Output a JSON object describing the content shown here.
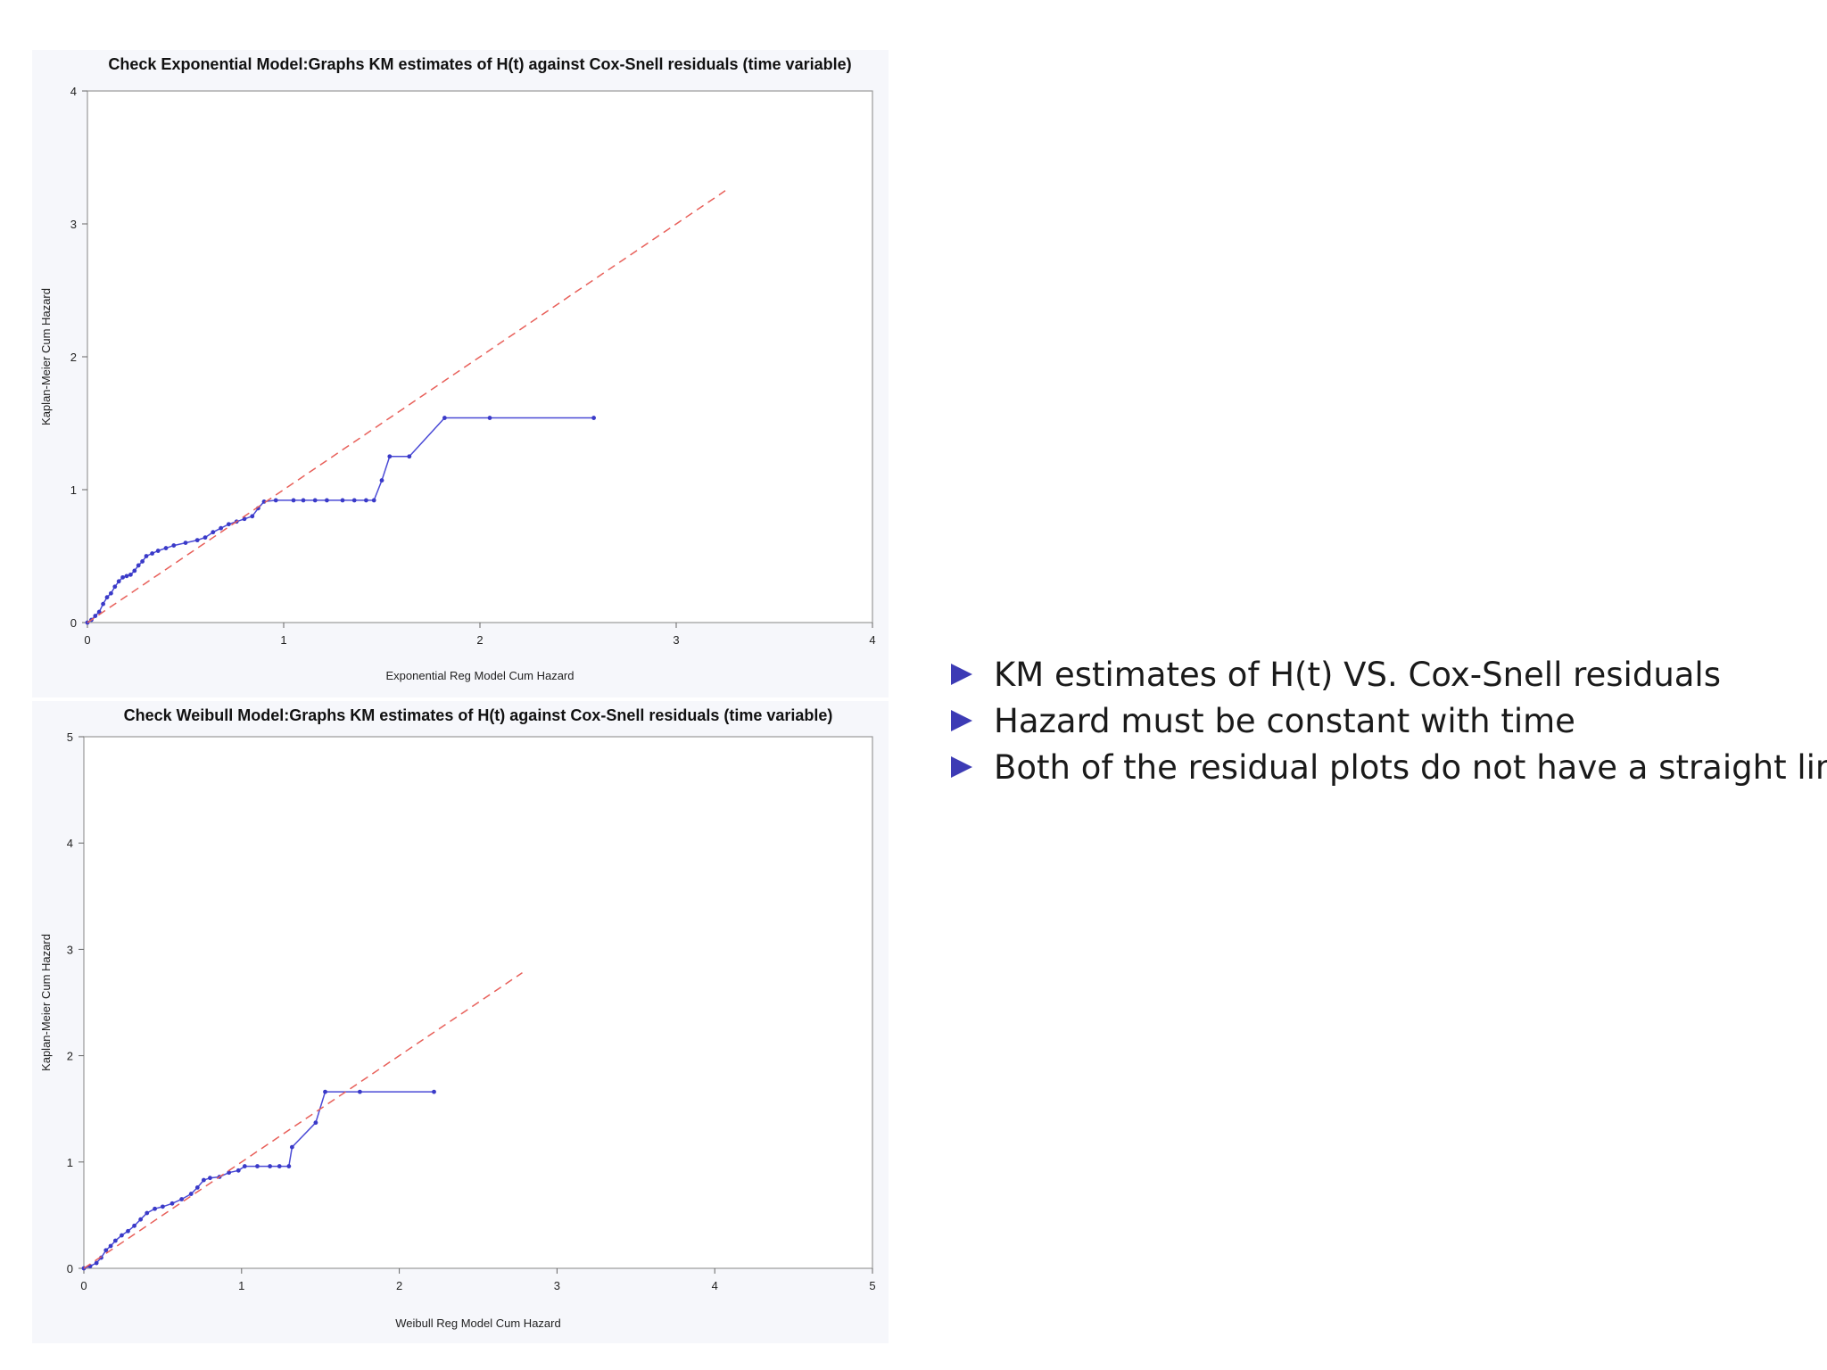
{
  "chart_data": [
    {
      "type": "line",
      "title": "Check Exponential Model:Graphs KM estimates of H(t) against Cox-Snell residuals (time variable)",
      "xlabel": "Exponential Reg Model Cum Hazard",
      "ylabel": "Kaplan-Meier Cum Hazard",
      "xlim": [
        0,
        4
      ],
      "ylim": [
        0,
        4
      ],
      "xticks": [
        "0",
        "1",
        "2",
        "3",
        "4"
      ],
      "yticks": [
        "0",
        "1",
        "2",
        "3",
        "4"
      ],
      "series": [
        {
          "color": "#4a4ad6",
          "style": "solid-with-markers",
          "x": [
            0,
            0.02,
            0.04,
            0.06,
            0.08,
            0.1,
            0.12,
            0.14,
            0.16,
            0.18,
            0.2,
            0.22,
            0.24,
            0.26,
            0.28,
            0.3,
            0.33,
            0.36,
            0.4,
            0.44,
            0.5,
            0.56,
            0.6,
            0.64,
            0.68,
            0.72,
            0.76,
            0.8,
            0.84,
            0.87,
            0.9,
            0.96,
            1.05,
            1.1,
            1.16,
            1.22,
            1.3,
            1.36,
            1.42,
            1.46,
            1.5,
            1.54,
            1.64,
            1.82,
            2.05,
            2.58
          ],
          "y": [
            0,
            0.02,
            0.05,
            0.08,
            0.14,
            0.19,
            0.22,
            0.27,
            0.31,
            0.34,
            0.35,
            0.36,
            0.39,
            0.43,
            0.46,
            0.5,
            0.52,
            0.54,
            0.56,
            0.58,
            0.6,
            0.62,
            0.64,
            0.68,
            0.71,
            0.74,
            0.76,
            0.78,
            0.8,
            0.86,
            0.91,
            0.92,
            0.92,
            0.92,
            0.92,
            0.92,
            0.92,
            0.92,
            0.92,
            0.92,
            1.07,
            1.25,
            1.25,
            1.54,
            1.54,
            1.54
          ]
        },
        {
          "color": "#e8605a",
          "style": "dashed",
          "x": [
            0,
            3.25
          ],
          "y": [
            0,
            3.25
          ]
        }
      ]
    },
    {
      "type": "line",
      "title": "Check Weibull Model:Graphs KM estimates of H(t) against Cox-Snell residuals (time variable)",
      "xlabel": "Weibull Reg Model Cum Hazard",
      "ylabel": "Kaplan-Meier Cum Hazard",
      "xlim": [
        0,
        5
      ],
      "ylim": [
        0,
        5
      ],
      "xticks": [
        "0",
        "1",
        "2",
        "3",
        "4",
        "5"
      ],
      "yticks": [
        "0",
        "1",
        "2",
        "3",
        "4",
        "5"
      ],
      "series": [
        {
          "color": "#4a4ad6",
          "style": "solid-with-markers",
          "x": [
            0,
            0.04,
            0.08,
            0.11,
            0.14,
            0.17,
            0.2,
            0.24,
            0.28,
            0.32,
            0.36,
            0.4,
            0.45,
            0.5,
            0.56,
            0.62,
            0.68,
            0.72,
            0.76,
            0.8,
            0.86,
            0.92,
            0.98,
            1.02,
            1.1,
            1.18,
            1.24,
            1.3,
            1.32,
            1.47,
            1.53,
            1.75,
            2.22
          ],
          "y": [
            0,
            0.02,
            0.05,
            0.1,
            0.17,
            0.21,
            0.26,
            0.31,
            0.35,
            0.4,
            0.46,
            0.52,
            0.56,
            0.58,
            0.61,
            0.65,
            0.7,
            0.76,
            0.83,
            0.85,
            0.86,
            0.9,
            0.92,
            0.96,
            0.96,
            0.96,
            0.96,
            0.96,
            1.14,
            1.37,
            1.66,
            1.66,
            1.66
          ]
        },
        {
          "color": "#e8605a",
          "style": "dashed",
          "x": [
            0,
            2.78
          ],
          "y": [
            0,
            2.78
          ]
        }
      ]
    }
  ],
  "bullets": [
    "KM estimates of H(t) VS. Cox-Snell residuals",
    "Hazard must be constant with time",
    "Both of the residual plots do not have a straight line"
  ]
}
